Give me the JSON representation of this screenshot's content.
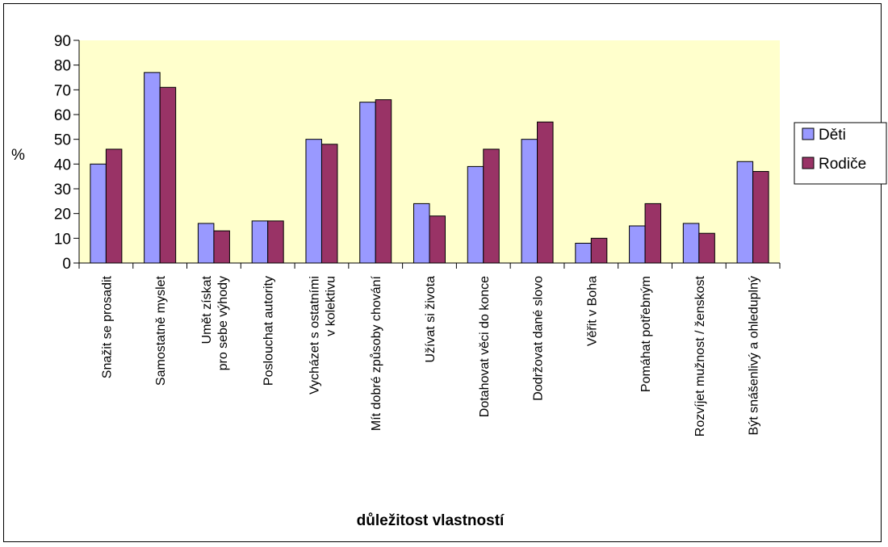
{
  "chart_data": {
    "type": "bar",
    "title": "",
    "xlabel": "důležitost vlastností",
    "ylabel": "%",
    "ylim": [
      0,
      90
    ],
    "yticks": [
      0,
      10,
      20,
      30,
      40,
      50,
      60,
      70,
      80,
      90
    ],
    "grid": false,
    "legend_position": "right",
    "categories": [
      "Snažit se prosadit",
      "Samostatně myslet",
      "Umět získat pro sebe výhody",
      "Poslouchat autority",
      "Vycházet s ostatními v kolektivu",
      "Mít dobré způsoby chování",
      "Užívat si života",
      "Dotahovat věci do konce",
      "Dodržovat dané slovo",
      "Věřit v Boha",
      "Pomáhat potřebným",
      "Rozvíjet mužnost / ženskost",
      "Být snášenlivý a ohleduplný"
    ],
    "series": [
      {
        "name": "Děti",
        "color": "#9999ff",
        "values": [
          40,
          77,
          16,
          17,
          50,
          65,
          24,
          39,
          50,
          8,
          15,
          16,
          41
        ]
      },
      {
        "name": "Rodiče",
        "color": "#993366",
        "values": [
          46,
          71,
          13,
          17,
          48,
          66,
          19,
          46,
          57,
          10,
          24,
          12,
          37
        ]
      }
    ],
    "plot_background": "#ffffcc"
  }
}
